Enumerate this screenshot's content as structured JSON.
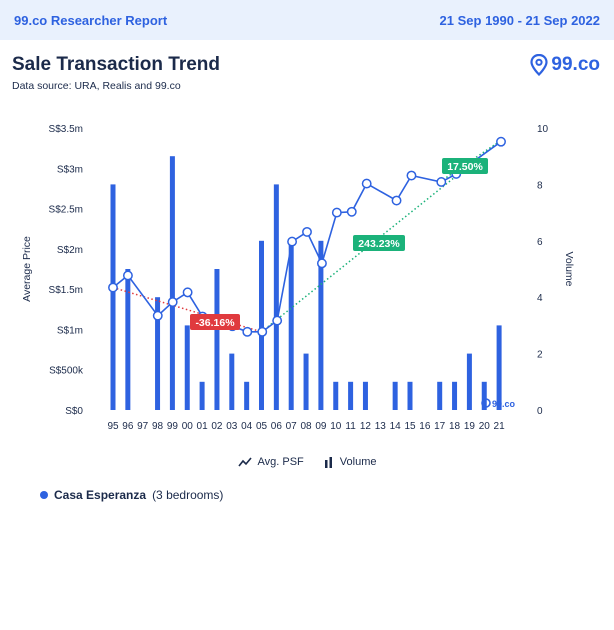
{
  "header": {
    "report_label": "99.co Researcher Report",
    "date_range": "21 Sep 1990 - 21 Sep 2022"
  },
  "title": "Sale Transaction Trend",
  "subtitle": "Data source: URA, Realis and 99.co",
  "logo_text": "99.co",
  "watermark_text": "99.co",
  "colors": {
    "accent": "#2e62e0",
    "negative_badge": "#e03a3e",
    "positive_badge": "#1bb27a",
    "header_bg": "#e9f1fd"
  },
  "legend": {
    "line_label": "Avg. PSF",
    "bar_label": "Volume"
  },
  "property": {
    "name": "Casa Esperanza",
    "detail": "(3 bedrooms)"
  },
  "chart_data": {
    "type": "bar",
    "categories": [
      "95",
      "96",
      "97",
      "98",
      "99",
      "00",
      "01",
      "02",
      "03",
      "04",
      "05",
      "06",
      "07",
      "08",
      "09",
      "10",
      "11",
      "12",
      "13",
      "14",
      "15",
      "16",
      "17",
      "18",
      "19",
      "20",
      "21"
    ],
    "left_axis": {
      "label": "Average Price",
      "ticks": [
        "S$0",
        "S$500k",
        "S$1m",
        "S$1.5m",
        "S$2m",
        "S$2.5m",
        "S$3m",
        "S$3.5m"
      ],
      "ylim": [
        0,
        3500000
      ]
    },
    "right_axis": {
      "label": "Volume",
      "ticks": [
        "0",
        "2",
        "4",
        "6",
        "8",
        "10"
      ],
      "ylim": [
        0,
        10
      ]
    },
    "series": [
      {
        "name": "Volume",
        "type": "bar",
        "axis": "right",
        "values": [
          8,
          5,
          0,
          4,
          9,
          3,
          1,
          5,
          2,
          1,
          6,
          8,
          6,
          2,
          6,
          1,
          1,
          1,
          0,
          1,
          1,
          0,
          1,
          1,
          2,
          1,
          3
        ]
      },
      {
        "name": "Avg. PSF",
        "type": "line",
        "axis": "left",
        "points": [
          {
            "x": 0,
            "y": 1520000
          },
          {
            "x": 1,
            "y": 1670000
          },
          {
            "x": 3,
            "y": 1170000
          },
          {
            "x": 4,
            "y": 1340000
          },
          {
            "x": 5,
            "y": 1460000
          },
          {
            "x": 6,
            "y": 1160000
          },
          {
            "x": 7,
            "y": 1070000
          },
          {
            "x": 8,
            "y": 1040000
          },
          {
            "x": 9,
            "y": 970000
          },
          {
            "x": 10,
            "y": 970000
          },
          {
            "x": 11,
            "y": 1110000
          },
          {
            "x": 12,
            "y": 2090000
          },
          {
            "x": 13,
            "y": 2210000
          },
          {
            "x": 14,
            "y": 1820000
          },
          {
            "x": 15,
            "y": 2450000
          },
          {
            "x": 16,
            "y": 2460000
          },
          {
            "x": 17,
            "y": 2810000
          },
          {
            "x": 19,
            "y": 2600000
          },
          {
            "x": 20,
            "y": 2910000
          },
          {
            "x": 22,
            "y": 2830000
          },
          {
            "x": 23,
            "y": 2930000
          },
          {
            "x": 26,
            "y": 3330000
          }
        ]
      }
    ],
    "trend_annotations": [
      {
        "label": "-36.16%",
        "from_x": 0,
        "to_x": 10,
        "from_y": 1520000,
        "to_y": 970000,
        "color": "#e03a3e"
      },
      {
        "label": "243.23%",
        "from_x": 10,
        "to_x": 26,
        "from_y": 970000,
        "to_y": 3330000,
        "color": "#1bb27a"
      },
      {
        "label": "17.50%",
        "from_x": 22,
        "to_x": 26,
        "from_y": 2830000,
        "to_y": 3330000,
        "color": "#1bb27a"
      }
    ]
  }
}
